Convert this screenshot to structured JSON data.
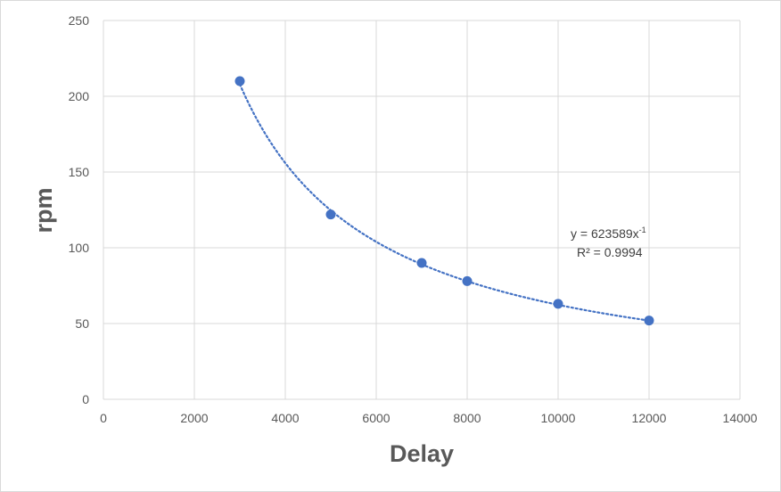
{
  "chart_data": {
    "type": "scatter",
    "title": "",
    "xlabel": "Delay",
    "ylabel": "rpm",
    "xlim": [
      0,
      14000
    ],
    "ylim": [
      0,
      250
    ],
    "x_ticks": [
      "0",
      "2000",
      "4000",
      "6000",
      "8000",
      "10000",
      "12000",
      "14000"
    ],
    "y_ticks": [
      "0",
      "50",
      "100",
      "150",
      "200",
      "250"
    ],
    "grid": true,
    "series": [
      {
        "x": [
          3000,
          5000,
          7000,
          8000,
          10000,
          12000
        ],
        "y": [
          210,
          122,
          90,
          78,
          63,
          52
        ]
      }
    ],
    "trendline": {
      "type": "power",
      "coefficient": 623589,
      "exponent": -1,
      "equation_prefix": "y = 623589x",
      "equation_exponent": "-1",
      "r_squared_label": "R² = 0.9994"
    },
    "colors": {
      "marker": "#4472c4",
      "trendline": "#4472c4",
      "grid": "#d9d9d9",
      "text": "#595959"
    }
  }
}
